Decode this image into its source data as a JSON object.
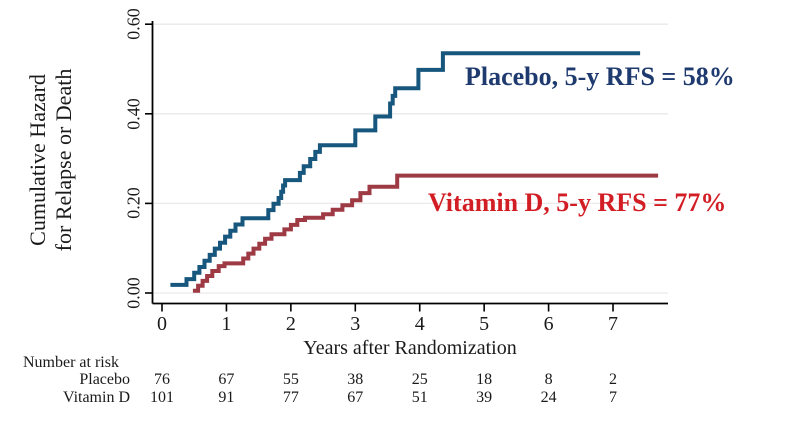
{
  "figure_title": "Cumulative hazard for relapse or death, Placebo vs Vitamin D",
  "colors": {
    "placebo_curve": "#17567d",
    "vitamin_d_curve": "#9e3a44",
    "placebo_text": "#1e3a6e",
    "vitamin_d_text": "#d21d24",
    "axis": "#000000",
    "grid": "#eaeaea",
    "text": "#1a1a1a",
    "background": "#ffffff"
  },
  "y_axis": {
    "title_line1": "Cumulative Hazard",
    "title_line2": "for Relapse or Death",
    "tick_labels": [
      "0.00",
      "0.20",
      "0.40",
      "0.60"
    ]
  },
  "x_axis": {
    "title": "Years after Randomization",
    "tick_labels": [
      "0",
      "1",
      "2",
      "3",
      "4",
      "5",
      "6",
      "7"
    ]
  },
  "annotations": {
    "placebo": "Placebo, 5-y RFS = 58%",
    "vitamin_d": "Vitamin D, 5-y RFS = 77%"
  },
  "risk_table": {
    "header": "Number at risk",
    "rows": [
      {
        "label": "Placebo",
        "values": [
          "76",
          "67",
          "55",
          "38",
          "25",
          "18",
          "8",
          "2"
        ]
      },
      {
        "label": "Vitamin D",
        "values": [
          "101",
          "91",
          "77",
          "67",
          "51",
          "39",
          "24",
          "7"
        ]
      }
    ]
  },
  "chart_data": {
    "type": "line",
    "subtype": "step-function-cumulative-hazard",
    "title": "",
    "xlabel": "Years after Randomization",
    "ylabel": "Cumulative Hazard for Relapse or Death",
    "xlim": [
      0,
      7.85
    ],
    "ylim": [
      0,
      0.6
    ],
    "x_ticks": [
      0,
      1,
      2,
      3,
      4,
      5,
      6,
      7
    ],
    "y_ticks": [
      0.0,
      0.2,
      0.4,
      0.6
    ],
    "grid": true,
    "legend_position": "inline-annotations",
    "series": [
      {
        "name": "Placebo",
        "annotation": "Placebo, 5-y RFS = 58%",
        "five_year_rfs_pct": 58,
        "end_t": 7.42,
        "points": [
          [
            0.13,
            0.018
          ],
          [
            0.38,
            0.031
          ],
          [
            0.5,
            0.045
          ],
          [
            0.58,
            0.058
          ],
          [
            0.66,
            0.072
          ],
          [
            0.74,
            0.085
          ],
          [
            0.82,
            0.099
          ],
          [
            0.9,
            0.112
          ],
          [
            0.98,
            0.126
          ],
          [
            1.06,
            0.139
          ],
          [
            1.14,
            0.153
          ],
          [
            1.25,
            0.167
          ],
          [
            1.65,
            0.185
          ],
          [
            1.73,
            0.199
          ],
          [
            1.81,
            0.212
          ],
          [
            1.85,
            0.226
          ],
          [
            1.88,
            0.24
          ],
          [
            1.91,
            0.252
          ],
          [
            2.14,
            0.268
          ],
          [
            2.2,
            0.283
          ],
          [
            2.3,
            0.299
          ],
          [
            2.38,
            0.315
          ],
          [
            2.45,
            0.33
          ],
          [
            3.0,
            0.363
          ],
          [
            3.31,
            0.394
          ],
          [
            3.54,
            0.423
          ],
          [
            3.58,
            0.44
          ],
          [
            3.62,
            0.457
          ],
          [
            3.98,
            0.498
          ],
          [
            4.36,
            0.535
          ]
        ]
      },
      {
        "name": "Vitamin D",
        "annotation": "Vitamin D, 5-y RFS = 77%",
        "five_year_rfs_pct": 77,
        "end_t": 7.7,
        "points": [
          [
            0.48,
            0.005
          ],
          [
            0.56,
            0.016
          ],
          [
            0.63,
            0.027
          ],
          [
            0.7,
            0.038
          ],
          [
            0.78,
            0.049
          ],
          [
            0.88,
            0.06
          ],
          [
            0.97,
            0.066
          ],
          [
            1.26,
            0.077
          ],
          [
            1.34,
            0.088
          ],
          [
            1.42,
            0.099
          ],
          [
            1.51,
            0.11
          ],
          [
            1.6,
            0.121
          ],
          [
            1.7,
            0.131
          ],
          [
            1.9,
            0.142
          ],
          [
            2.0,
            0.152
          ],
          [
            2.1,
            0.163
          ],
          [
            2.22,
            0.168
          ],
          [
            2.5,
            0.176
          ],
          [
            2.65,
            0.186
          ],
          [
            2.8,
            0.196
          ],
          [
            2.95,
            0.207
          ],
          [
            3.08,
            0.223
          ],
          [
            3.22,
            0.237
          ],
          [
            3.65,
            0.262
          ]
        ]
      }
    ]
  }
}
